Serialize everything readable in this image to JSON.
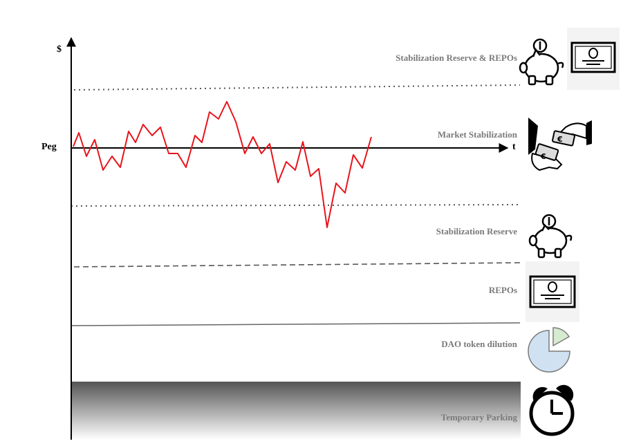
{
  "axes": {
    "y_label": "$",
    "x_label": "t",
    "peg_label": "Peg"
  },
  "zones": [
    {
      "label": "Stabilization Reserve & REPOs",
      "icons": [
        "piggy-bank-icon",
        "bond-certificate-icon"
      ]
    },
    {
      "label": "Market Stabilization",
      "icons": [
        "euro-cash-exchange-icon"
      ]
    },
    {
      "label": "Stabilization Reserve",
      "icons": [
        "piggy-bank-icon"
      ]
    },
    {
      "label": "REPOs",
      "icons": [
        "bond-certificate-icon"
      ]
    },
    {
      "label": "DAO token dilution",
      "icons": [
        "pie-chart-icon"
      ]
    },
    {
      "label": "Temporary Parking",
      "icons": [
        "alarm-clock-icon"
      ]
    }
  ],
  "colors": {
    "price_line": "#e8141b",
    "label_text": "#7a7a7a",
    "pie_main": "#d0e2f2",
    "pie_slice": "#d6ecd0",
    "parking_gradient_top": "#5a5a5a",
    "parking_gradient_bottom": "#ffffff"
  }
}
